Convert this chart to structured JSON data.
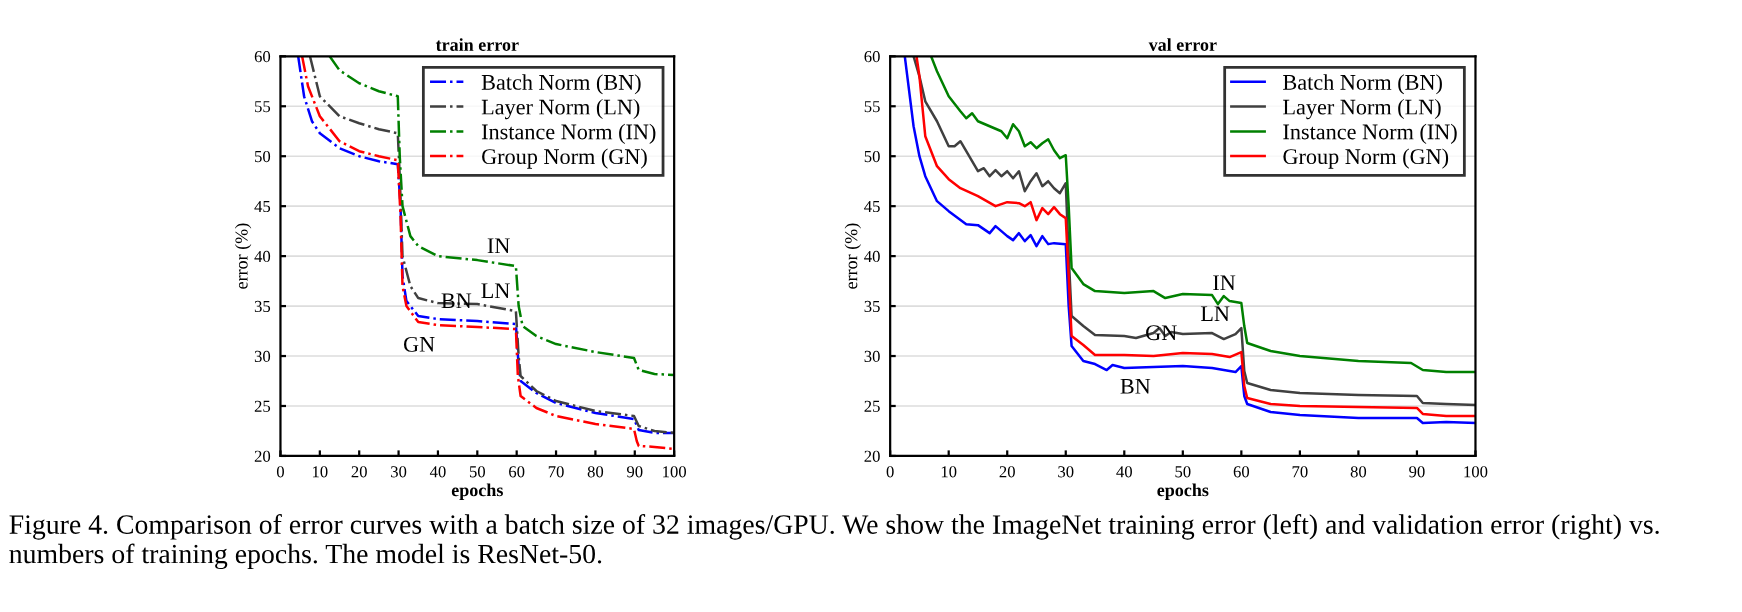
{
  "chart_data": [
    {
      "type": "line",
      "title": "train error",
      "xlabel": "epochs",
      "ylabel": "error (%)",
      "xlim": [
        0,
        100
      ],
      "ylim": [
        20,
        60
      ],
      "xticks": [
        0,
        10,
        20,
        30,
        40,
        50,
        60,
        70,
        80,
        90,
        100
      ],
      "yticks": [
        20,
        25,
        30,
        35,
        40,
        45,
        50,
        55,
        60
      ],
      "grid": "y",
      "legend": "top right",
      "line_style": "dashdot",
      "marker": "none",
      "series": [
        {
          "name": "Batch Norm (BN)",
          "color": "#0000ff",
          "x": [
            4.5,
            6,
            8,
            10,
            15,
            20,
            25,
            29.8,
            30.5,
            31,
            32,
            35,
            40,
            50,
            59.8,
            60.5,
            61,
            65,
            70,
            80,
            89.8,
            91,
            95,
            100
          ],
          "values": [
            60,
            56,
            53.5,
            52.3,
            50.8,
            50,
            49.5,
            49.2,
            45,
            38,
            35.5,
            34,
            33.7,
            33.5,
            33.2,
            29,
            27.5,
            26.3,
            25.3,
            24.3,
            23.7,
            22.6,
            22.3,
            22.3
          ]
        },
        {
          "name": "Layer Norm (LN)",
          "color": "#404040",
          "x": [
            7.5,
            10,
            15,
            20,
            25,
            29.8,
            30.3,
            31,
            33,
            35,
            40,
            50,
            59.8,
            60.5,
            61,
            65,
            70,
            80,
            89.8,
            91,
            95,
            100
          ],
          "values": [
            60,
            56,
            54,
            53.3,
            52.7,
            52.3,
            48,
            40,
            37,
            35.8,
            35.3,
            35.2,
            34.5,
            30,
            28,
            26.5,
            25.5,
            24.5,
            24,
            23,
            22.5,
            22.3
          ]
        },
        {
          "name": "Instance Norm (IN)",
          "color": "#008000",
          "x": [
            12.5,
            15,
            20,
            25,
            29.8,
            30.3,
            31,
            33,
            35,
            40,
            50,
            59.8,
            60.5,
            61.5,
            65,
            70,
            80,
            89.8,
            91,
            95,
            100
          ],
          "values": [
            60,
            58.6,
            57.3,
            56.5,
            56,
            50,
            45,
            42,
            41,
            40,
            39.6,
            39,
            35,
            33,
            32,
            31.2,
            30.4,
            29.8,
            28.6,
            28.2,
            28.1
          ]
        },
        {
          "name": "Group Norm (GN)",
          "color": "#ff0000",
          "x": [
            5.5,
            7,
            10,
            15,
            20,
            25,
            29.8,
            30.5,
            31,
            32,
            35,
            40,
            50,
            59.8,
            60.3,
            61,
            65,
            70,
            80,
            89.8,
            90.5,
            91,
            95,
            100
          ],
          "values": [
            60,
            57,
            54,
            51.5,
            50.5,
            50,
            49.6,
            44,
            37,
            35,
            33.4,
            33.1,
            32.9,
            32.7,
            28,
            26,
            24.8,
            24,
            23.2,
            22.7,
            21.5,
            21,
            20.9,
            20.7
          ]
        }
      ],
      "annotations": [
        {
          "text": "IN",
          "x": 59.8,
          "y": 39
        },
        {
          "text": "LN",
          "x": 59.8,
          "y": 34.5
        },
        {
          "text": "BN",
          "x": 50,
          "y": 33.5
        },
        {
          "text": "GN",
          "x": 40,
          "y": 33.1
        }
      ]
    },
    {
      "type": "line",
      "title": "val error",
      "xlabel": "epochs",
      "ylabel": "error (%)",
      "xlim": [
        0,
        100
      ],
      "ylim": [
        20,
        60
      ],
      "xticks": [
        0,
        10,
        20,
        30,
        40,
        50,
        60,
        70,
        80,
        90,
        100
      ],
      "yticks": [
        20,
        25,
        30,
        35,
        40,
        45,
        50,
        55,
        60
      ],
      "grid": "y",
      "legend": "top right",
      "line_style": "solid",
      "marker": "none",
      "series": [
        {
          "name": "Batch Norm (BN)",
          "color": "#0000ff",
          "x": [
            2.5,
            4,
            5,
            6,
            8,
            10,
            13,
            15,
            17,
            18,
            20,
            21,
            22,
            23,
            24,
            25,
            26,
            27,
            28,
            30,
            30.5,
            31,
            33,
            35,
            37,
            38,
            40,
            45,
            50,
            55,
            59,
            60,
            60.5,
            61,
            65,
            70,
            80,
            90,
            91,
            95,
            100
          ],
          "values": [
            60,
            53,
            50,
            48,
            45.5,
            44.5,
            43.2,
            43.1,
            42.3,
            43,
            42,
            41.6,
            42.3,
            41.5,
            42.1,
            41,
            42,
            41.2,
            41.3,
            41.2,
            35,
            31,
            29.5,
            29.2,
            28.6,
            29.1,
            28.8,
            28.9,
            29,
            28.8,
            28.4,
            29,
            26,
            25.2,
            24.4,
            24.1,
            23.8,
            23.8,
            23.3,
            23.4,
            23.3
          ]
        },
        {
          "name": "Layer Norm (LN)",
          "color": "#404040",
          "x": [
            4,
            5,
            6,
            8,
            10,
            11,
            12,
            13,
            15,
            16,
            17,
            18,
            19,
            20,
            21,
            22,
            23,
            24,
            25,
            26,
            27,
            28,
            29,
            30,
            30.5,
            31,
            33,
            35,
            40,
            42,
            45,
            46,
            47,
            48,
            50,
            55,
            57,
            59,
            60,
            60.5,
            61,
            65,
            70,
            80,
            90,
            91,
            95,
            100
          ],
          "values": [
            60,
            58,
            55.5,
            53.5,
            51,
            51,
            51.5,
            50.5,
            48.5,
            48.8,
            48,
            48.6,
            48,
            48.5,
            47.8,
            48.5,
            46.5,
            47.5,
            48.3,
            47,
            47.5,
            46.8,
            46.3,
            47.3,
            40,
            34,
            33,
            32.1,
            32,
            31.8,
            32.3,
            32.8,
            32,
            32.4,
            32.2,
            32.3,
            31.7,
            32.2,
            32.8,
            28.5,
            27.3,
            26.6,
            26.3,
            26.1,
            26,
            25.3,
            25.2,
            25.1
          ]
        },
        {
          "name": "Instance Norm (IN)",
          "color": "#008000",
          "x": [
            7,
            8,
            10,
            12,
            13,
            14,
            15,
            17,
            19,
            20,
            21,
            22,
            23,
            24,
            25,
            26,
            27,
            28,
            29,
            30,
            30.5,
            31,
            33,
            35,
            40,
            45,
            47,
            50,
            55,
            56,
            57,
            58,
            60,
            60.5,
            61,
            65,
            70,
            80,
            89,
            91,
            95,
            100
          ],
          "values": [
            60,
            58.5,
            56,
            54.5,
            53.8,
            54.3,
            53.5,
            53,
            52.5,
            51.8,
            53.2,
            52.5,
            51,
            51.4,
            50.8,
            51.3,
            51.7,
            50.6,
            49.8,
            50.1,
            45,
            38.8,
            37.2,
            36.5,
            36.3,
            36.5,
            35.8,
            36.2,
            36.1,
            35.2,
            36,
            35.5,
            35.3,
            33,
            31.3,
            30.5,
            30,
            29.5,
            29.3,
            28.6,
            28.4,
            28.4
          ]
        },
        {
          "name": "Group Norm (GN)",
          "color": "#ff0000",
          "x": [
            4.5,
            5,
            6,
            8,
            10,
            12,
            15,
            18,
            20,
            22,
            23,
            24,
            25,
            26,
            27,
            28,
            29,
            30,
            30.5,
            31,
            33,
            35,
            40,
            45,
            50,
            55,
            58,
            60,
            60.5,
            61,
            65,
            70,
            80,
            90,
            91,
            95,
            100
          ],
          "values": [
            60,
            58,
            52,
            49,
            47.7,
            46.8,
            46,
            45,
            45.4,
            45.3,
            45,
            45.4,
            43.6,
            44.8,
            44.2,
            44.9,
            44.2,
            43.8,
            38,
            32,
            31.1,
            30.1,
            30.1,
            30,
            30.3,
            30.2,
            29.9,
            30.4,
            27,
            25.8,
            25.2,
            25,
            24.9,
            24.8,
            24.2,
            24,
            24
          ]
        }
      ],
      "annotations": [
        {
          "text": "IN",
          "x": 60,
          "y": 35.3
        },
        {
          "text": "LN",
          "x": 59,
          "y": 32.2
        },
        {
          "text": "GN",
          "x": 50,
          "y": 30.3
        },
        {
          "text": "BN",
          "x": 45,
          "y": 28.9
        },
        "Figure 4. Comparison of error curves with a batch size of 32 images/GPU. We show the ImageNet training error (left) and validation error (right) vs. numbers of training epochs. The model is ResNet-50."
      ]
    }
  ]
}
